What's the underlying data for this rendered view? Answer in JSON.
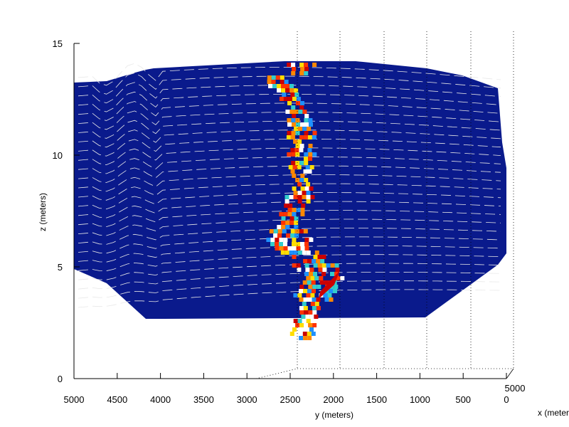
{
  "chart_data": {
    "type": "heatmap",
    "title": "",
    "xlabel": "y (meters)",
    "ylabel": "z (meters)",
    "depth_label": "x (meters)",
    "y_axis": {
      "range": [
        0,
        5000
      ],
      "reversed": true,
      "ticks": [
        {
          "value": 5000,
          "label": "5000"
        },
        {
          "value": 4500,
          "label": "4500"
        },
        {
          "value": 4000,
          "label": "4000"
        },
        {
          "value": 3500,
          "label": "3500"
        },
        {
          "value": 3000,
          "label": "3000"
        },
        {
          "value": 2500,
          "label": "2500"
        },
        {
          "value": 2000,
          "label": "2000"
        },
        {
          "value": 1500,
          "label": "1500"
        },
        {
          "value": 1000,
          "label": "1000"
        },
        {
          "value": 500,
          "label": "500"
        },
        {
          "value": 0,
          "label": "0"
        }
      ]
    },
    "z_axis": {
      "range": [
        0,
        15
      ],
      "ticks": [
        {
          "value": 0,
          "label": "0"
        },
        {
          "value": 5,
          "label": "5"
        },
        {
          "value": 10,
          "label": "10"
        },
        {
          "value": 15,
          "label": "15"
        }
      ]
    },
    "x_axis": {
      "ticks": [
        {
          "value": 5000,
          "label": "5000"
        }
      ]
    },
    "grid": true,
    "layers": 26,
    "colors": {
      "background_layer": "#0a1a8c",
      "layer_line": "#e8e8e8",
      "hot": [
        "#cc0000",
        "#ff3300",
        "#ff8800",
        "#ffdd00",
        "#33cccc",
        "#1e90ff",
        "#ffffff"
      ]
    }
  }
}
